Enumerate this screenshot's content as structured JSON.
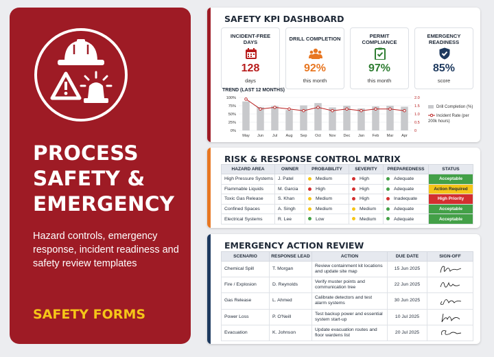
{
  "left": {
    "title_lines": [
      "PROCESS",
      "SAFETY &",
      "EMERGENCY"
    ],
    "subtitle": "Hazard controls, emergency response, incident readiness and safety review templates",
    "tagline": "SAFETY FORMS",
    "icons": [
      "hard-hat-icon",
      "warning-triangle-icon",
      "beacon-siren-icon"
    ]
  },
  "kpi": {
    "title": "SAFETY KPI DASHBOARD",
    "tiles": [
      {
        "label": "INCIDENT-FREE DAYS",
        "icon": "calendar-icon",
        "value": "128",
        "unit": "days",
        "color": "#b71c1c"
      },
      {
        "label": "DRILL COMPLETION",
        "icon": "group-icon",
        "value": "92%",
        "unit": "this month",
        "color": "#e87722"
      },
      {
        "label": "PERMIT COMPLIANCE",
        "icon": "clipboard-check-icon",
        "value": "97%",
        "unit": "this month",
        "color": "#2e7d32"
      },
      {
        "label": "EMERGENCY READINESS",
        "icon": "shield-check-icon",
        "value": "85%",
        "unit": "score",
        "color": "#1e3a5f"
      }
    ],
    "trend_label": "TREND (LAST 12 MONTHS)",
    "legend": {
      "bars": "Drill Completion (%)",
      "line": "Incident Rate (per 200k hours)"
    }
  },
  "chart_data": {
    "type": "bar",
    "categories": [
      "May",
      "Jun",
      "Jul",
      "Aug",
      "Sep",
      "Oct",
      "Nov",
      "Dec",
      "Jan",
      "Feb",
      "Mar",
      "Apr"
    ],
    "series": [
      {
        "name": "Drill Completion (%)",
        "type": "bar",
        "axis": "left",
        "values": [
          88,
          71,
          74,
          62,
          76,
          83,
          70,
          75,
          67,
          73,
          75,
          72
        ]
      },
      {
        "name": "Incident Rate (per 200k hours)",
        "type": "line",
        "axis": "right",
        "values": [
          1.9,
          1.3,
          1.4,
          1.3,
          1.2,
          1.4,
          1.2,
          1.3,
          1.2,
          1.3,
          1.3,
          1.2
        ]
      }
    ],
    "y_left": {
      "ticks": [
        "0%",
        "25%",
        "50%",
        "75%",
        "100%"
      ],
      "range": [
        0,
        100
      ]
    },
    "y_right": {
      "ticks": [
        "0",
        "0.5",
        "1.0",
        "1.5",
        "2.0"
      ],
      "range": [
        0,
        2
      ]
    },
    "grid": true,
    "legend_position": "right",
    "colors": {
      "bars": "#c8c9cc",
      "line": "#b71c1c"
    }
  },
  "risk": {
    "title": "RISK & RESPONSE CONTROL MATRIX",
    "columns": [
      "HAZARD AREA",
      "OWNER",
      "PROBABILITY",
      "SEVERITY",
      "PREPAREDNESS",
      "STATUS"
    ],
    "rows": [
      {
        "area": "High Pressure Systems",
        "owner": "J. Patel",
        "prob": "Medium",
        "prob_color": "#f5c518",
        "sev": "High",
        "sev_color": "#d32f2f",
        "prep": "Adequate",
        "prep_color": "#43a047",
        "status": "Acceptable",
        "status_bg": "#43a047",
        "status_fg": "#ffffff"
      },
      {
        "area": "Flammable Liquids",
        "owner": "M. Garcia",
        "prob": "High",
        "prob_color": "#d32f2f",
        "sev": "High",
        "sev_color": "#d32f2f",
        "prep": "Adequate",
        "prep_color": "#43a047",
        "status": "Action Required",
        "status_bg": "#f5c518",
        "status_fg": "#1f2937"
      },
      {
        "area": "Toxic Gas Release",
        "owner": "S. Khan",
        "prob": "Medium",
        "prob_color": "#f5c518",
        "sev": "High",
        "sev_color": "#d32f2f",
        "prep": "Inadequate",
        "prep_color": "#d32f2f",
        "status": "High Priority",
        "status_bg": "#d32f2f",
        "status_fg": "#ffffff"
      },
      {
        "area": "Confined Spaces",
        "owner": "A. Singh",
        "prob": "Medium",
        "prob_color": "#f5c518",
        "sev": "Medium",
        "sev_color": "#f5c518",
        "prep": "Adequate",
        "prep_color": "#43a047",
        "status": "Acceptable",
        "status_bg": "#43a047",
        "status_fg": "#ffffff"
      },
      {
        "area": "Electrical Systems",
        "owner": "R. Lee",
        "prob": "Low",
        "prob_color": "#43a047",
        "sev": "Medium",
        "sev_color": "#f5c518",
        "prep": "Adequate",
        "prep_color": "#43a047",
        "status": "Acceptable",
        "status_bg": "#43a047",
        "status_fg": "#ffffff"
      }
    ]
  },
  "emergency": {
    "title": "EMERGENCY ACTION REVIEW",
    "columns": [
      "SCENARIO",
      "RESPONSE LEAD",
      "ACTION",
      "DUE DATE",
      "SIGN-OFF"
    ],
    "rows": [
      {
        "scenario": "Chemical Spill",
        "lead": "T. Morgan",
        "action": "Review containment kit locations and update site map",
        "due": "15 Jun 2025"
      },
      {
        "scenario": "Fire / Explosion",
        "lead": "D. Reynolds",
        "action": "Verify muster points and communication tree",
        "due": "22 Jun 2025"
      },
      {
        "scenario": "Gas Release",
        "lead": "L. Ahmed",
        "action": "Calibrate detectors and test alarm systems",
        "due": "30 Jun 2025"
      },
      {
        "scenario": "Power Loss",
        "lead": "P. O'Neill",
        "action": "Test backup power and essential system start-up",
        "due": "10 Jul 2025"
      },
      {
        "scenario": "Evacuation",
        "lead": "K. Johnson",
        "action": "Update evacuation routes and floor wardens list",
        "due": "20 Jul 2025"
      }
    ]
  }
}
